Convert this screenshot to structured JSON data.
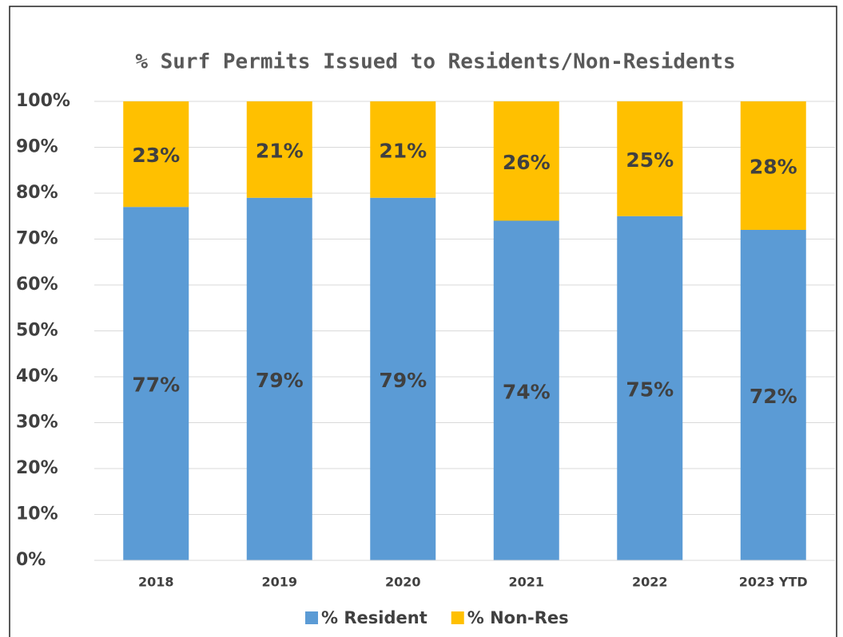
{
  "chart_data": {
    "type": "stacked_bar",
    "title": "% Surf Permits Issued to Residents/Non-Residents",
    "categories": [
      "2018",
      "2019",
      "2020",
      "2021",
      "2022",
      "2023 YTD"
    ],
    "series": [
      {
        "name": "% Resident",
        "color": "#5b9bd5",
        "values": [
          77,
          79,
          79,
          74,
          75,
          72
        ],
        "value_labels": [
          "77%",
          "79%",
          "79%",
          "74%",
          "75%",
          "72%"
        ]
      },
      {
        "name": "% Non-Res",
        "color": "#ffc000",
        "values": [
          23,
          21,
          21,
          26,
          25,
          28
        ],
        "value_labels": [
          "23%",
          "21%",
          "21%",
          "26%",
          "25%",
          "28%"
        ]
      }
    ],
    "ylim": [
      0,
      100
    ],
    "yticks": [
      {
        "value": 0,
        "label": "0%"
      },
      {
        "value": 10,
        "label": "10%"
      },
      {
        "value": 20,
        "label": "20%"
      },
      {
        "value": 30,
        "label": "30%"
      },
      {
        "value": 40,
        "label": "40%"
      },
      {
        "value": 50,
        "label": "50%"
      },
      {
        "value": 60,
        "label": "60%"
      },
      {
        "value": 70,
        "label": "70%"
      },
      {
        "value": 80,
        "label": "80%"
      },
      {
        "value": 90,
        "label": "90%"
      },
      {
        "value": 100,
        "label": "100%"
      }
    ],
    "grid": true,
    "legend": "bottom"
  }
}
